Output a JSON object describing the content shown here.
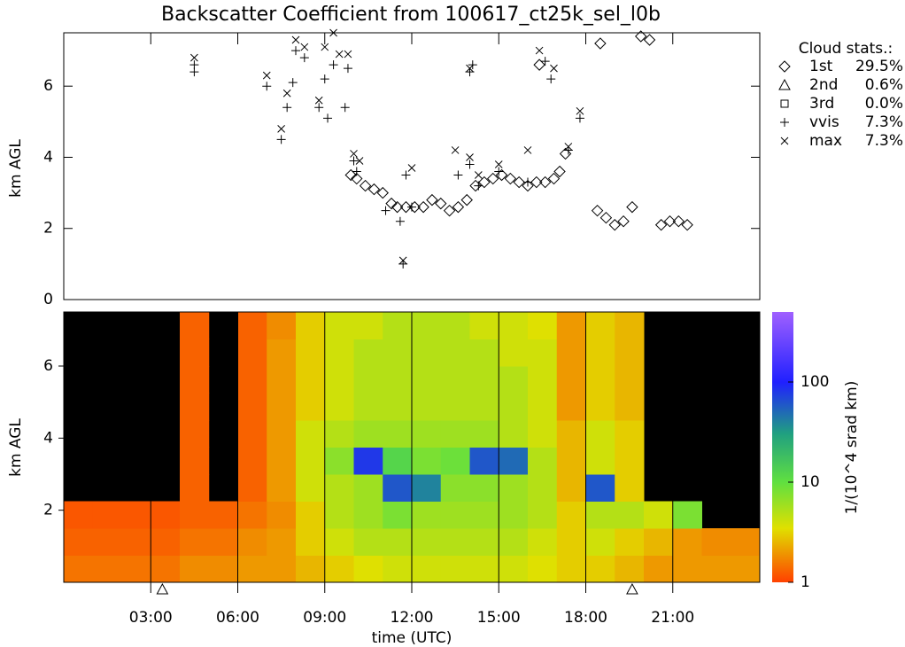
{
  "title": "Backscatter Coefficient from 100617_ct25k_sel_l0b",
  "chart_data": [
    {
      "type": "scatter",
      "ylabel": "km AGL",
      "xlim": [
        0,
        24
      ],
      "ylim": [
        0,
        7.5
      ],
      "yticks": [
        0,
        2,
        4,
        6
      ],
      "legend_title": "Cloud stats.:",
      "series": [
        {
          "name": "1st",
          "marker": "diamond",
          "stat": 29.5,
          "stat_label": "29.5%",
          "x": [
            9.9,
            10.1,
            10.4,
            10.7,
            11,
            11.3,
            11.5,
            11.8,
            12.1,
            12.4,
            12.7,
            13,
            13.3,
            13.6,
            13.9,
            14.2,
            14.5,
            14.8,
            15.1,
            15.4,
            15.7,
            16,
            16.3,
            16.6,
            16.9,
            17.1,
            17.3,
            16.4,
            18.4,
            18.7,
            19,
            19.3,
            19.6,
            20.6,
            20.9,
            21.2,
            21.5,
            18.5,
            19.9,
            20.2
          ],
          "y": [
            3.5,
            3.4,
            3.2,
            3.1,
            3,
            2.7,
            2.6,
            2.6,
            2.6,
            2.6,
            2.8,
            2.7,
            2.5,
            2.6,
            2.8,
            3.2,
            3.3,
            3.4,
            3.5,
            3.4,
            3.3,
            3.2,
            3.3,
            3.3,
            3.4,
            3.6,
            4.1,
            6.6,
            2.5,
            2.3,
            2.1,
            2.2,
            2.6,
            2.1,
            2.2,
            2.2,
            2.1,
            7.2,
            7.4,
            7.3
          ]
        },
        {
          "name": "2nd",
          "marker": "triangle",
          "stat": 0.6,
          "stat_label": "0.6%",
          "x": [],
          "y": []
        },
        {
          "name": "3rd",
          "marker": "square",
          "stat": 0.0,
          "stat_label": "0.0%",
          "x": [],
          "y": []
        },
        {
          "name": "vvis",
          "marker": "plus",
          "stat": 7.3,
          "stat_label": "7.3%",
          "x": [
            4.5,
            4.5,
            7,
            7.5,
            7.7,
            7.9,
            8,
            8.3,
            8.8,
            9,
            9.1,
            9.3,
            9.7,
            9.8,
            10,
            10.1,
            11.1,
            11.6,
            11.7,
            11.8,
            12,
            14,
            14,
            13.6,
            14.3,
            15,
            16,
            16.6,
            16.8,
            17.4,
            17.8,
            14.1
          ],
          "y": [
            6.4,
            6.6,
            6,
            4.5,
            5.4,
            6.1,
            7,
            6.8,
            5.4,
            6.2,
            5.1,
            6.6,
            5.4,
            6.5,
            3.9,
            3.6,
            2.5,
            2.2,
            1.0,
            3.5,
            2.6,
            6.4,
            3.8,
            3.5,
            3.2,
            3.6,
            3.3,
            6.7,
            6.2,
            4.2,
            5.1,
            6.6
          ]
        },
        {
          "name": "max",
          "marker": "cross",
          "stat": 7.3,
          "stat_label": "7.3%",
          "x": [
            4.5,
            7,
            7.5,
            7.7,
            8,
            8.3,
            8.8,
            9,
            9.3,
            9.5,
            9.8,
            10,
            10.2,
            11.7,
            12,
            13.5,
            14,
            14,
            14.3,
            15,
            16,
            16.4,
            16.9,
            17.4,
            17.8
          ],
          "y": [
            6.8,
            6.3,
            4.8,
            5.8,
            7.3,
            7.1,
            5.6,
            7.1,
            7.5,
            6.9,
            6.9,
            4.1,
            3.9,
            1.1,
            3.7,
            4.2,
            6.5,
            4.0,
            3.5,
            3.8,
            4.2,
            7.0,
            6.5,
            4.3,
            5.3
          ]
        }
      ]
    },
    {
      "type": "heatmap",
      "ylabel": "km AGL",
      "xlabel": "time (UTC)",
      "xlim": [
        0,
        24
      ],
      "ylim": [
        0,
        7.5
      ],
      "xticks": [
        {
          "value": 3,
          "label": "03:00"
        },
        {
          "value": 6,
          "label": "06:00"
        },
        {
          "value": 9,
          "label": "09:00"
        },
        {
          "value": 12,
          "label": "12:00"
        },
        {
          "value": 15,
          "label": "15:00"
        },
        {
          "value": 18,
          "label": "18:00"
        },
        {
          "value": 21,
          "label": "21:00"
        }
      ],
      "yticks": [
        2,
        4,
        6
      ],
      "x_edges": [
        0,
        1,
        2,
        3,
        4,
        5,
        6,
        7,
        8,
        9,
        10,
        11,
        12,
        13,
        14,
        15,
        16,
        17,
        18,
        19,
        20,
        21,
        22,
        23,
        24
      ],
      "y_edges": [
        0,
        0.75,
        1.5,
        2.25,
        3,
        3.75,
        4.5,
        5.25,
        6,
        6.75,
        7.5
      ],
      "z": [
        [
          1.5,
          1.5,
          1.5,
          1.5,
          1.8,
          1.8,
          2,
          2,
          2.5,
          3,
          3.5,
          4,
          4,
          4,
          4,
          4,
          3.5,
          3,
          3,
          2.5,
          2,
          2,
          2,
          2
        ],
        [
          1.3,
          1.3,
          1.3,
          1.3,
          1.5,
          1.5,
          1.8,
          2,
          3,
          4,
          5,
          5,
          5,
          5,
          5,
          5,
          4,
          3,
          4,
          3,
          2.5,
          2,
          1.8,
          1.8
        ],
        [
          1.2,
          1.2,
          1.2,
          1.2,
          1.3,
          1.3,
          1.5,
          1.8,
          3,
          5,
          6,
          8,
          6,
          6,
          6,
          6,
          5,
          3,
          5,
          5,
          4,
          8,
          null,
          null
        ],
        [
          null,
          null,
          null,
          null,
          1.3,
          null,
          1.3,
          2,
          4,
          5,
          6,
          60,
          40,
          7,
          7,
          6,
          5,
          2.5,
          60,
          3,
          null,
          null,
          null,
          null
        ],
        [
          null,
          null,
          null,
          null,
          1.3,
          null,
          1.3,
          2,
          4,
          7,
          80,
          12,
          8,
          9,
          60,
          50,
          5,
          2.5,
          4,
          3,
          null,
          null,
          null,
          null
        ],
        [
          null,
          null,
          null,
          null,
          1.3,
          null,
          1.3,
          2,
          4,
          5,
          6,
          6,
          6,
          6,
          6,
          5,
          4,
          2.5,
          4,
          3,
          null,
          null,
          null,
          null
        ],
        [
          null,
          null,
          null,
          null,
          1.3,
          null,
          1.3,
          2,
          3,
          4,
          5,
          5,
          5,
          5,
          5,
          5,
          4,
          2,
          3,
          2.5,
          null,
          null,
          null,
          null
        ],
        [
          null,
          null,
          null,
          null,
          1.3,
          null,
          1.3,
          2,
          3,
          4,
          5,
          5,
          5,
          5,
          5,
          5,
          4,
          2,
          3,
          2.5,
          null,
          null,
          null,
          null
        ],
        [
          null,
          null,
          null,
          null,
          1.3,
          null,
          1.3,
          2,
          3,
          4,
          5,
          5,
          5,
          5,
          5,
          4,
          4,
          2,
          3,
          2.5,
          null,
          null,
          null,
          null
        ],
        [
          null,
          null,
          null,
          null,
          1.3,
          null,
          1.3,
          1.8,
          3,
          4,
          4,
          5,
          5,
          5,
          4,
          4,
          3.5,
          2,
          3,
          2.5,
          null,
          null,
          null,
          null
        ]
      ],
      "markers_x": [
        3.4,
        19.6
      ],
      "colorbar": {
        "label": "1/(10^4 srad km)",
        "log": true,
        "lim": [
          1,
          500
        ],
        "ticks": [
          1,
          10,
          100
        ]
      }
    }
  ]
}
